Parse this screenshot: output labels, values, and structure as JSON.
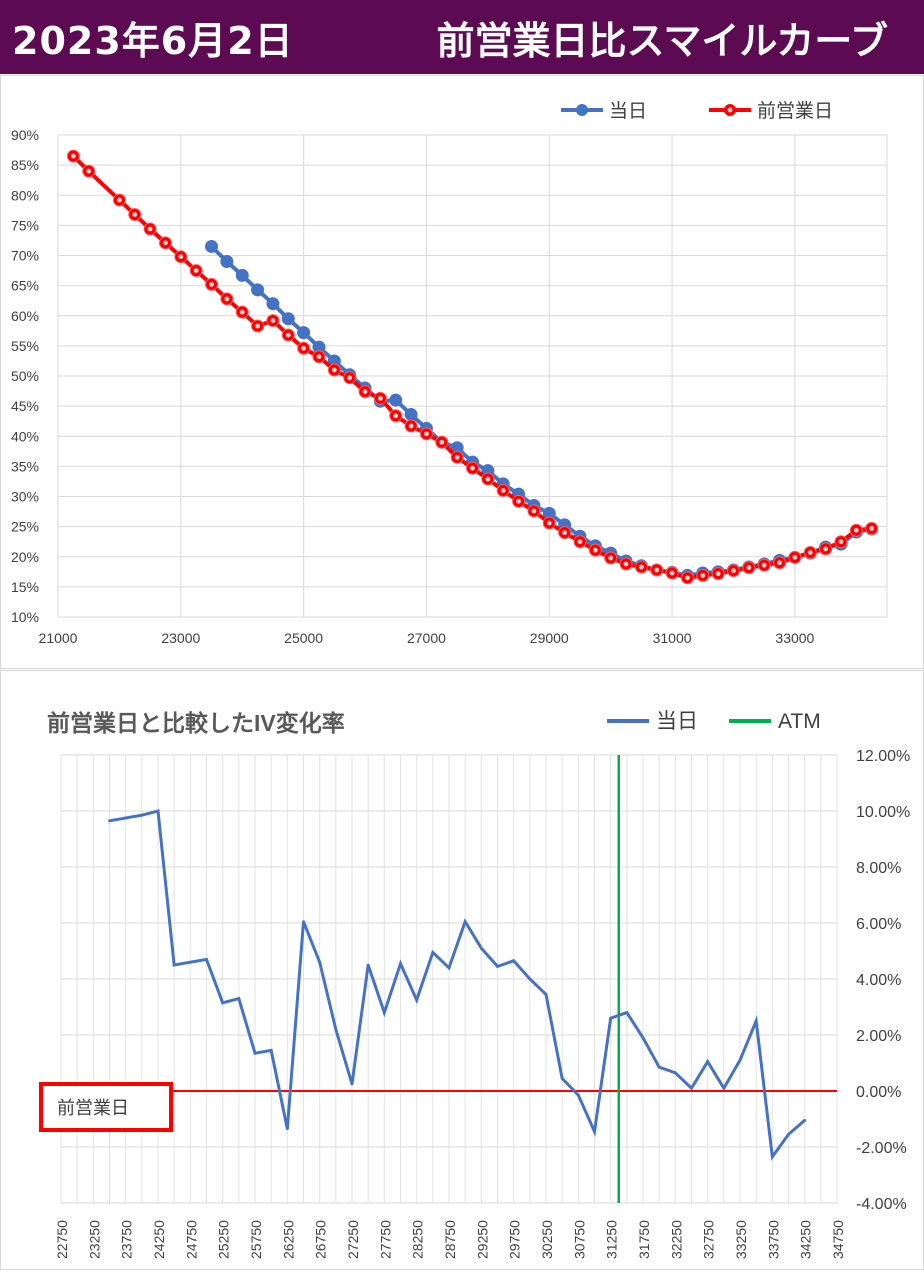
{
  "header": {
    "date": "2023年6月2日",
    "title": "前営業日比スマイルカーブ"
  },
  "colors": {
    "header_bg": "#5c0a52",
    "today": "#4472c4",
    "prev": "#ff0000",
    "atm": "#00b050",
    "zero_line": "#ff0000"
  },
  "chart_data": [
    {
      "type": "line",
      "title": "",
      "xlim": [
        21000,
        34500
      ],
      "ylim": [
        0.15,
        0.9
      ],
      "x_ticks": [
        "21000",
        "23000",
        "25000",
        "27000",
        "29000",
        "31000",
        "33000"
      ],
      "x_tick_values": [
        21000,
        23000,
        25000,
        27000,
        29000,
        31000,
        33000
      ],
      "y_ticks": [
        "90%",
        "85%",
        "80%",
        "75%",
        "70%",
        "65%",
        "60%",
        "55%",
        "50%",
        "45%",
        "40%",
        "35%",
        "30%",
        "25%",
        "20%",
        "15%",
        "10%"
      ],
      "grid": true,
      "legend_position": "top-right",
      "legend": [
        "当日",
        "前営業日"
      ],
      "series": [
        {
          "name": "当日",
          "color": "#4472c4",
          "x": [
            23500,
            23750,
            24000,
            24250,
            24500,
            24750,
            25000,
            25250,
            25500,
            25750,
            26000,
            26250,
            26500,
            26750,
            27000,
            27250,
            27500,
            27750,
            28000,
            28250,
            28500,
            28750,
            29000,
            29250,
            29500,
            29750,
            30000,
            30250,
            30500,
            30750,
            31000,
            31250,
            31500,
            31750,
            32000,
            32250,
            32500,
            32750,
            33000,
            33250,
            33500,
            33750,
            34000,
            34250
          ],
          "y": [
            0.715,
            0.69,
            0.667,
            0.643,
            0.62,
            0.595,
            0.572,
            0.548,
            0.525,
            0.502,
            0.48,
            0.458,
            0.46,
            0.436,
            0.413,
            0.39,
            0.381,
            0.357,
            0.343,
            0.321,
            0.304,
            0.285,
            0.272,
            0.253,
            0.234,
            0.218,
            0.206,
            0.193,
            0.185,
            0.178,
            0.174,
            0.169,
            0.173,
            0.175,
            0.178,
            0.183,
            0.188,
            0.194,
            0.199,
            0.206,
            0.216,
            0.221,
            0.241,
            0.246
          ]
        },
        {
          "name": "前営業日",
          "color": "#ff0000",
          "x": [
            21250,
            21500,
            22000,
            22250,
            22500,
            22750,
            23000,
            23250,
            23500,
            23750,
            24000,
            24250,
            24500,
            24750,
            25000,
            25250,
            25500,
            25750,
            26000,
            26250,
            26500,
            26750,
            27000,
            27250,
            27500,
            27750,
            28000,
            28250,
            28500,
            28750,
            29000,
            29250,
            29500,
            29750,
            30000,
            30250,
            30500,
            30750,
            31000,
            31250,
            31500,
            31750,
            32000,
            32250,
            32500,
            32750,
            33000,
            33250,
            33500,
            33750,
            34000,
            34250
          ],
          "y": [
            0.865,
            0.84,
            0.792,
            0.768,
            0.744,
            0.721,
            0.698,
            0.675,
            0.652,
            0.628,
            0.606,
            0.583,
            0.592,
            0.568,
            0.546,
            0.532,
            0.51,
            0.497,
            0.474,
            0.463,
            0.434,
            0.417,
            0.404,
            0.39,
            0.365,
            0.347,
            0.329,
            0.31,
            0.292,
            0.276,
            0.256,
            0.24,
            0.225,
            0.211,
            0.198,
            0.188,
            0.183,
            0.178,
            0.173,
            0.165,
            0.169,
            0.172,
            0.177,
            0.182,
            0.186,
            0.19,
            0.199,
            0.207,
            0.213,
            0.225,
            0.244,
            0.247
          ]
        }
      ]
    },
    {
      "type": "line",
      "title": "前営業日と比較したIV変化率",
      "categories": [
        "22750",
        "23000",
        "23250",
        "23500",
        "23750",
        "24000",
        "24250",
        "24500",
        "24750",
        "25000",
        "25250",
        "25500",
        "25750",
        "26000",
        "26250",
        "26500",
        "26750",
        "27000",
        "27250",
        "27500",
        "27750",
        "28000",
        "28250",
        "28500",
        "28750",
        "29000",
        "29250",
        "29500",
        "29750",
        "30000",
        "30250",
        "30500",
        "30750",
        "31000",
        "31250",
        "31500",
        "31750",
        "32000",
        "32250",
        "32500",
        "32750",
        "33000",
        "33250",
        "33500",
        "33750",
        "34000",
        "34250",
        "34500",
        "34750"
      ],
      "x_tick_labels": [
        "22750",
        "23250",
        "23750",
        "24250",
        "24750",
        "25250",
        "25750",
        "26250",
        "26750",
        "27250",
        "27750",
        "28250",
        "28750",
        "29250",
        "29750",
        "30250",
        "30750",
        "31250",
        "31750",
        "32250",
        "32750",
        "33250",
        "33750",
        "34250",
        "34750"
      ],
      "y_axis_side": "right",
      "ylim": [
        -0.04,
        0.12
      ],
      "y_ticks": [
        "12.00%",
        "10.00%",
        "8.00%",
        "6.00%",
        "4.00%",
        "2.00%",
        "0.00%",
        "-2.00%",
        "-4.00%"
      ],
      "legend_position": "top-right",
      "legend": [
        "当日",
        "ATM"
      ],
      "atm_strike": 31375,
      "zero_label": "前営業日",
      "series": [
        {
          "name": "当日",
          "color": "#4472c4",
          "x": [
            23500,
            23750,
            24000,
            24250,
            24500,
            24750,
            25000,
            25250,
            25500,
            25750,
            26000,
            26250,
            26500,
            26750,
            27000,
            27250,
            27500,
            27750,
            28000,
            28250,
            28500,
            28750,
            29000,
            29250,
            29500,
            29750,
            30000,
            30250,
            30500,
            30750,
            31000,
            31250,
            31500,
            31750,
            32000,
            32250,
            32500,
            32750,
            33000,
            33250,
            33500,
            33750,
            34000,
            34250
          ],
          "y": [
            0.0965,
            0.0975,
            0.0985,
            0.1,
            0.045,
            0.046,
            0.047,
            0.0315,
            0.033,
            0.0135,
            0.0145,
            -0.0135,
            0.0605,
            0.046,
            0.022,
            0.0025,
            0.045,
            0.028,
            0.0455,
            0.0325,
            0.0495,
            0.044,
            0.0605,
            0.051,
            0.0445,
            0.0465,
            0.04,
            0.0345,
            0.0045,
            -0.0015,
            -0.0145,
            0.026,
            0.028,
            0.019,
            0.0085,
            0.0065,
            0.001,
            0.0105,
            0.001,
            0.011,
            0.025,
            -0.0235,
            -0.0155,
            -0.0105
          ]
        }
      ]
    }
  ]
}
